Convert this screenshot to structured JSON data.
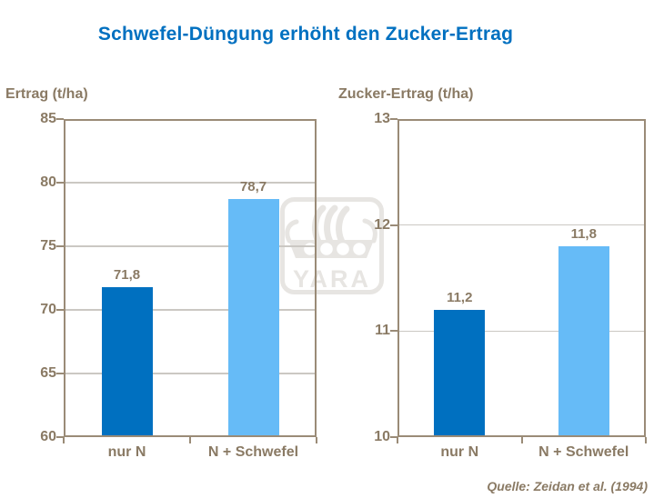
{
  "page": {
    "title": "Schwefel-Düngung erhöht den Zucker-Ertrag",
    "source": "Quelle: Zeidan et al. (1994)"
  },
  "watermark": {
    "brand": "YARA"
  },
  "colors": {
    "title_blue": "#0070C0",
    "bar_dark_blue": "#0070C0",
    "bar_light_blue": "#66BBF7",
    "axis_text_brown": "#8A7A64",
    "axis_line_brown": "#9A8B77",
    "gridline_gray": "#CBC8C3",
    "watermark_gray": "#E7E5E2"
  },
  "chart_data": [
    {
      "type": "bar",
      "title": "Ertrag (t/ha)",
      "categories": [
        "nur N",
        "N + Schwefel"
      ],
      "values": [
        71.8,
        78.7
      ],
      "value_labels": [
        "71,8",
        "78,7"
      ],
      "bar_colors": [
        "#0070C0",
        "#66BBF7"
      ],
      "ylim": [
        60,
        85
      ],
      "ytick_step": 5,
      "yticks": [
        60,
        65,
        70,
        75,
        80,
        85
      ],
      "grid": true,
      "legend": false
    },
    {
      "type": "bar",
      "title": "Zucker-Ertrag (t/ha)",
      "categories": [
        "nur N",
        "N + Schwefel"
      ],
      "values": [
        11.2,
        11.8
      ],
      "value_labels": [
        "11,2",
        "11,8"
      ],
      "bar_colors": [
        "#0070C0",
        "#66BBF7"
      ],
      "ylim": [
        10,
        13
      ],
      "ytick_step": 1,
      "yticks": [
        10,
        11,
        12,
        13
      ],
      "grid": true,
      "legend": false
    }
  ]
}
